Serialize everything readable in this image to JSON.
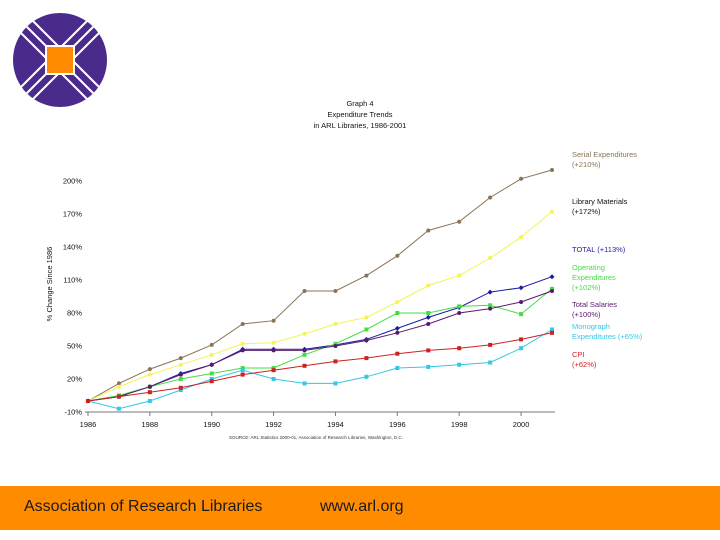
{
  "colors": {
    "serial": "#8b7355",
    "materials": "#f4f455",
    "total": "#1c1ca8",
    "operating": "#44dd44",
    "salaries": "#5a1a6a",
    "monograph": "#33c8e8",
    "cpi": "#cc2222",
    "footer": "#ff8c00",
    "logo_purple": "#4a2a8a",
    "logo_orange": "#ff8c00"
  },
  "footer": {
    "org": "Association of Research Libraries",
    "url": "www.arl.org"
  },
  "chart_data": {
    "type": "line",
    "title": [
      "Graph 4",
      "Expenditure Trends",
      "in ARL Libraries, 1986-2001"
    ],
    "ylabel": "% Change Since 1986",
    "xlabel": "",
    "source": "SOURCE: ARL Statistics 2000-01, Association of Research Libraries, Washington, D.C.",
    "x": [
      1986,
      1987,
      1988,
      1989,
      1990,
      1991,
      1992,
      1993,
      1994,
      1995,
      1996,
      1997,
      1998,
      1999,
      2000,
      2001
    ],
    "xticks": [
      1986,
      1988,
      1990,
      1992,
      1994,
      1996,
      1998,
      2000
    ],
    "xtick_labels": [
      "1986",
      "1988",
      "1990",
      "1992",
      "1994",
      "1996",
      "1998",
      "2000"
    ],
    "yticks": [
      -10,
      20,
      50,
      80,
      110,
      140,
      170,
      200
    ],
    "ytick_labels": [
      "-10%",
      "20%",
      "50%",
      "80%",
      "110%",
      "140%",
      "170%",
      "200%"
    ],
    "ylim": [
      -10,
      230
    ],
    "series": [
      {
        "key": "serial",
        "name": "Serial Expenditures",
        "pct": "(+210%)",
        "values": [
          0,
          16,
          29,
          39,
          51,
          70,
          73,
          100,
          100,
          114,
          132,
          155,
          163,
          185,
          202,
          210
        ]
      },
      {
        "key": "materials",
        "name": "Library Materials",
        "pct": "(+172%)",
        "values": [
          0,
          13,
          24,
          33,
          42,
          52,
          53,
          61,
          70,
          76,
          90,
          105,
          114,
          130,
          149,
          172
        ]
      },
      {
        "key": "total",
        "name": "TOTAL",
        "pct": "(+113%)",
        "values": [
          0,
          4,
          13,
          25,
          33,
          47,
          47,
          47,
          51,
          56,
          66,
          76,
          85,
          99,
          103,
          113
        ]
      },
      {
        "key": "operating",
        "name": "Operating Expenditures",
        "pct": "(+102%)",
        "values": [
          0,
          5,
          13,
          20,
          25,
          30,
          30,
          42,
          52,
          65,
          80,
          80,
          86,
          87,
          79,
          102
        ]
      },
      {
        "key": "salaries",
        "name": "Total Salaries",
        "pct": "(+100%)",
        "values": [
          0,
          4,
          13,
          24,
          33,
          46,
          46,
          46,
          50,
          55,
          62,
          70,
          80,
          84,
          90,
          100
        ]
      },
      {
        "key": "monograph",
        "name": "Monograph Expenditures",
        "pct": "(+65%)",
        "values": [
          0,
          -7,
          0,
          10,
          20,
          28,
          20,
          16,
          16,
          22,
          30,
          31,
          33,
          35,
          48,
          65
        ]
      },
      {
        "key": "cpi",
        "name": "CPI",
        "pct": "(+62%)",
        "values": [
          0,
          4,
          8,
          12,
          18,
          24,
          28,
          32,
          36,
          39,
          43,
          46,
          48,
          51,
          56,
          62
        ]
      }
    ],
    "legend": [
      {
        "key": "serial",
        "lines": [
          "Serial Expenditures",
          "(+210%)"
        ]
      },
      {
        "key": "materials",
        "lines": [
          "Library Materials",
          "(+172%)"
        ]
      },
      {
        "key": "total",
        "lines": [
          "TOTAL (+113%)"
        ]
      },
      {
        "key": "operating",
        "lines": [
          "Operating",
          "Expenditures",
          "(+102%)"
        ]
      },
      {
        "key": "salaries",
        "lines": [
          "Total Salaries",
          "(+100%)"
        ]
      },
      {
        "key": "monograph",
        "lines": [
          "Monograph",
          "Expenditures (+65%)"
        ]
      },
      {
        "key": "cpi",
        "lines": [
          "CPI",
          "(+62%)"
        ]
      }
    ]
  }
}
